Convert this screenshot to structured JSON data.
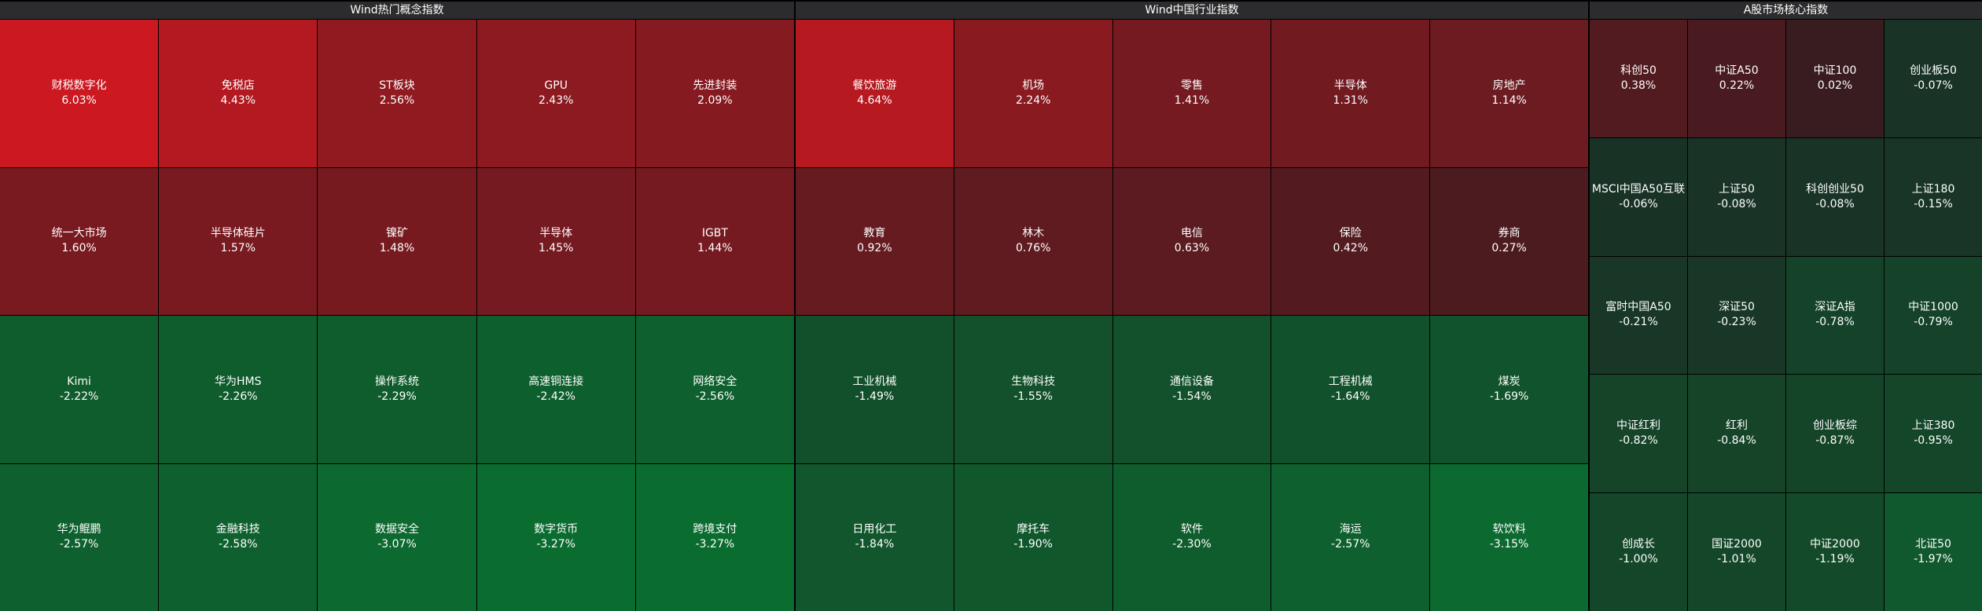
{
  "panels": [
    {
      "title": "Wind热门概念指数",
      "rows": [
        [
          {
            "name": "财税数字化",
            "change": "6.03%"
          },
          {
            "name": "免税店",
            "change": "4.43%"
          },
          {
            "name": "ST板块",
            "change": "2.56%"
          },
          {
            "name": "GPU",
            "change": "2.43%"
          },
          {
            "name": "先进封装",
            "change": "2.09%"
          }
        ],
        [
          {
            "name": "统一大市场",
            "change": "1.60%"
          },
          {
            "name": "半导体硅片",
            "change": "1.57%"
          },
          {
            "name": "镍矿",
            "change": "1.48%"
          },
          {
            "name": "半导体",
            "change": "1.45%"
          },
          {
            "name": "IGBT",
            "change": "1.44%"
          }
        ],
        [
          {
            "name": "Kimi",
            "change": "-2.22%"
          },
          {
            "name": "华为HMS",
            "change": "-2.26%"
          },
          {
            "name": "操作系统",
            "change": "-2.29%"
          },
          {
            "name": "高速铜连接",
            "change": "-2.42%"
          },
          {
            "name": "网络安全",
            "change": "-2.56%"
          }
        ],
        [
          {
            "name": "华为鲲鹏",
            "change": "-2.57%"
          },
          {
            "name": "金融科技",
            "change": "-2.58%"
          },
          {
            "name": "数据安全",
            "change": "-3.07%"
          },
          {
            "name": "数字货币",
            "change": "-3.27%"
          },
          {
            "name": "跨境支付",
            "change": "-3.27%"
          }
        ]
      ]
    },
    {
      "title": "Wind中国行业指数",
      "rows": [
        [
          {
            "name": "餐饮旅游",
            "change": "4.64%"
          },
          {
            "name": "机场",
            "change": "2.24%"
          },
          {
            "name": "零售",
            "change": "1.41%"
          },
          {
            "name": "半导体",
            "change": "1.31%"
          },
          {
            "name": "房地产",
            "change": "1.14%"
          }
        ],
        [
          {
            "name": "教育",
            "change": "0.92%"
          },
          {
            "name": "林木",
            "change": "0.76%"
          },
          {
            "name": "电信",
            "change": "0.63%"
          },
          {
            "name": "保险",
            "change": "0.42%"
          },
          {
            "name": "券商",
            "change": "0.27%"
          }
        ],
        [
          {
            "name": "工业机械",
            "change": "-1.49%"
          },
          {
            "name": "生物科技",
            "change": "-1.55%"
          },
          {
            "name": "通信设备",
            "change": "-1.54%"
          },
          {
            "name": "工程机械",
            "change": "-1.64%"
          },
          {
            "name": "煤炭",
            "change": "-1.69%"
          }
        ],
        [
          {
            "name": "日用化工",
            "change": "-1.84%"
          },
          {
            "name": "摩托车",
            "change": "-1.90%"
          },
          {
            "name": "软件",
            "change": "-2.30%"
          },
          {
            "name": "海运",
            "change": "-2.57%"
          },
          {
            "name": "软饮料",
            "change": "-3.15%"
          }
        ]
      ]
    },
    {
      "title": "A股市场核心指数",
      "rows": [
        [
          {
            "name": "科创50",
            "change": "0.38%"
          },
          {
            "name": "中证A50",
            "change": "0.22%"
          },
          {
            "name": "中证100",
            "change": "0.02%"
          },
          {
            "name": "创业板50",
            "change": "-0.07%"
          }
        ],
        [
          {
            "name": "MSCI中国A50互联",
            "change": "-0.06%"
          },
          {
            "name": "上证50",
            "change": "-0.08%"
          },
          {
            "name": "科创创业50",
            "change": "-0.08%"
          },
          {
            "name": "上证180",
            "change": "-0.15%"
          }
        ],
        [
          {
            "name": "富时中国A50",
            "change": "-0.21%"
          },
          {
            "name": "深证50",
            "change": "-0.23%"
          },
          {
            "name": "深证A指",
            "change": "-0.78%"
          },
          {
            "name": "中证1000",
            "change": "-0.79%"
          }
        ],
        [
          {
            "name": "中证红利",
            "change": "-0.82%"
          },
          {
            "name": "红利",
            "change": "-0.84%"
          },
          {
            "name": "创业板综",
            "change": "-0.87%"
          },
          {
            "name": "上证380",
            "change": "-0.95%"
          }
        ],
        [
          {
            "name": "创成长",
            "change": "-1.00%"
          },
          {
            "name": "国证2000",
            "change": "-1.01%"
          },
          {
            "name": "中证2000",
            "change": "-1.19%"
          },
          {
            "name": "北证50",
            "change": "-1.97%"
          }
        ]
      ]
    }
  ]
}
